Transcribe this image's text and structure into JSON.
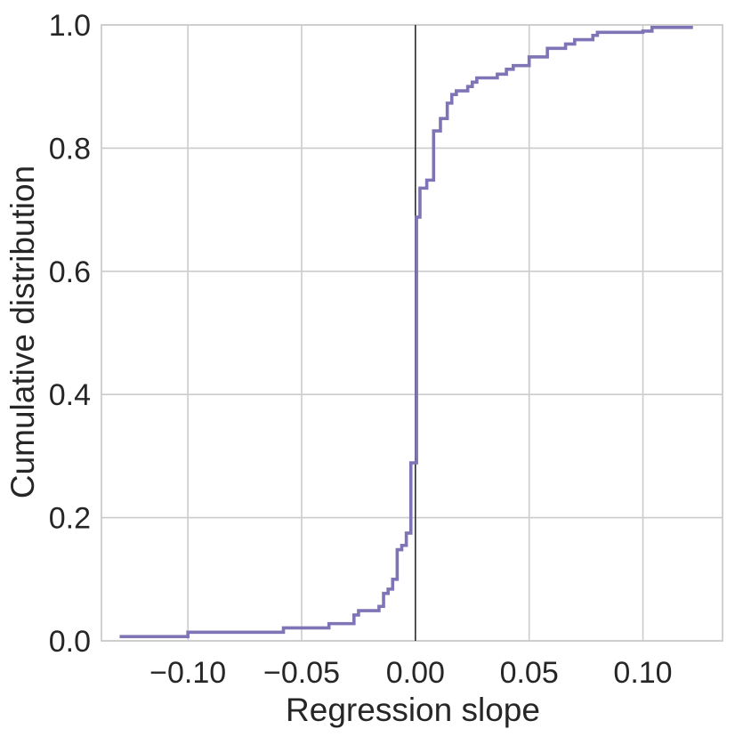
{
  "chart_data": {
    "type": "line",
    "title": "",
    "xlabel": "Regression slope",
    "ylabel": "Cumulative distribution",
    "xlim": [
      -0.138,
      0.135
    ],
    "ylim": [
      0.0,
      1.0
    ],
    "xticks": [
      -0.1,
      -0.05,
      0.0,
      0.05,
      0.1
    ],
    "xtick_labels": [
      "−0.10",
      "−0.05",
      "0.00",
      "0.05",
      "0.10"
    ],
    "yticks": [
      0.0,
      0.2,
      0.4,
      0.6,
      0.8,
      1.0
    ],
    "ytick_labels": [
      "0.0",
      "0.2",
      "0.4",
      "0.6",
      "0.8",
      "1.0"
    ],
    "grid": true,
    "reference_line_x": 0.0,
    "series": [
      {
        "color": "#7f74b6",
        "x": [
          -0.13,
          -0.1,
          -0.058,
          -0.038,
          -0.03,
          -0.027,
          -0.025,
          -0.021,
          -0.016,
          -0.014,
          -0.012,
          -0.01,
          -0.008,
          -0.006,
          -0.004,
          -0.003,
          -0.002,
          -0.001,
          0.0,
          0.0005,
          0.002,
          0.003,
          0.005,
          0.008,
          0.011,
          0.014,
          0.016,
          0.018,
          0.02,
          0.023,
          0.025,
          0.027,
          0.03,
          0.032,
          0.036,
          0.04,
          0.043,
          0.05,
          0.058,
          0.061,
          0.066,
          0.07,
          0.078,
          0.08,
          0.1,
          0.104,
          0.122
        ],
        "y": [
          0.007,
          0.014,
          0.021,
          0.028,
          0.028,
          0.042,
          0.049,
          0.049,
          0.056,
          0.077,
          0.084,
          0.1,
          0.148,
          0.155,
          0.175,
          0.175,
          0.289,
          0.289,
          0.289,
          0.688,
          0.735,
          0.735,
          0.748,
          0.828,
          0.848,
          0.873,
          0.887,
          0.893,
          0.893,
          0.9,
          0.907,
          0.914,
          0.914,
          0.914,
          0.92,
          0.928,
          0.934,
          0.948,
          0.962,
          0.962,
          0.969,
          0.976,
          0.983,
          0.988,
          0.99,
          0.996,
          0.996
        ]
      }
    ]
  },
  "colors": {
    "series": "#7f74b6",
    "grid": "#cccccc",
    "reference_line": "#222222",
    "text": "#262626"
  }
}
